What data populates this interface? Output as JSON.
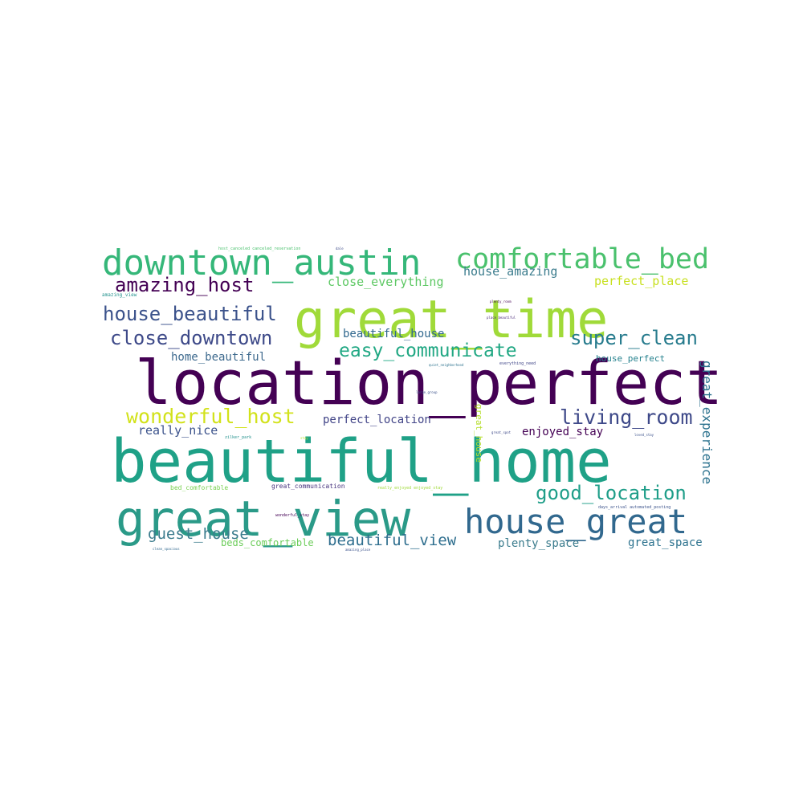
{
  "chart_data": {
    "type": "wordcloud",
    "words": [
      {
        "text": "location_perfect",
        "weight": 1.0,
        "color": "#440154"
      },
      {
        "text": "beautiful_home",
        "weight": 0.96,
        "color": "#1fa187"
      },
      {
        "text": "great_time",
        "weight": 0.78,
        "color": "#a0da39"
      },
      {
        "text": "great_view",
        "weight": 0.74,
        "color": "#2a9a88"
      },
      {
        "text": "downtown_austin",
        "weight": 0.52,
        "color": "#35b779"
      },
      {
        "text": "house_great",
        "weight": 0.52,
        "color": "#31688e"
      },
      {
        "text": "comfortable_bed",
        "weight": 0.44,
        "color": "#4ac16d"
      },
      {
        "text": "living_room",
        "weight": 0.33,
        "color": "#3e4989"
      },
      {
        "text": "wonderful_host",
        "weight": 0.33,
        "color": "#d2e21b"
      },
      {
        "text": "house_beautiful",
        "weight": 0.32,
        "color": "#3b528b"
      },
      {
        "text": "close_downtown",
        "weight": 0.32,
        "color": "#3e4a89"
      },
      {
        "text": "super_clean",
        "weight": 0.32,
        "color": "#287c8e"
      },
      {
        "text": "amazing_host",
        "weight": 0.31,
        "color": "#440154"
      },
      {
        "text": "easy_communicate",
        "weight": 0.31,
        "color": "#22a884"
      },
      {
        "text": "good_location",
        "weight": 0.31,
        "color": "#1f9e89"
      },
      {
        "text": "guest_house",
        "weight": 0.25,
        "color": "#3b7c8d"
      },
      {
        "text": "beautiful_view",
        "weight": 0.25,
        "color": "#2e6e8e"
      },
      {
        "text": "great_experience",
        "weight": 0.21,
        "color": "#2c728e"
      },
      {
        "text": "really_nice",
        "weight": 0.2,
        "color": "#3b528b"
      },
      {
        "text": "perfect_place",
        "weight": 0.2,
        "color": "#c8e020"
      },
      {
        "text": "close_everything",
        "weight": 0.2,
        "color": "#5dc863"
      },
      {
        "text": "house_amazing",
        "weight": 0.2,
        "color": "#3b7c8d"
      },
      {
        "text": "beautiful_house",
        "weight": 0.18,
        "color": "#31688e"
      },
      {
        "text": "home_beautiful",
        "weight": 0.18,
        "color": "#3e6a8e"
      },
      {
        "text": "perfect_location",
        "weight": 0.18,
        "color": "#414487"
      },
      {
        "text": "enjoyed_stay",
        "weight": 0.18,
        "color": "#440154"
      },
      {
        "text": "plenty_space",
        "weight": 0.18,
        "color": "#3b7c8d"
      },
      {
        "text": "great_space",
        "weight": 0.18,
        "color": "#2c728e"
      },
      {
        "text": "beds_comfortable",
        "weight": 0.16,
        "color": "#6ccd5a"
      },
      {
        "text": "house_perfect",
        "weight": 0.14,
        "color": "#26828e"
      },
      {
        "text": "great_house",
        "weight": 0.14,
        "color": "#b5de2b"
      },
      {
        "text": "bed_comfortable",
        "weight": 0.1,
        "color": "#7ad151"
      },
      {
        "text": "great_communication",
        "weight": 0.1,
        "color": "#46337e"
      },
      {
        "text": "amazing_view",
        "weight": 0.07,
        "color": "#21918c"
      },
      {
        "text": "zilker_park",
        "weight": 0.06,
        "color": "#21918c"
      },
      {
        "text": "wonderful_stay",
        "weight": 0.07,
        "color": "#440154"
      },
      {
        "text": "really_enjoyed enjoyed_stay",
        "weight": 0.06,
        "color": "#a0da39"
      },
      {
        "text": "days_arrival automated_posting",
        "weight": 0.06,
        "color": "#3b528b"
      },
      {
        "text": "host_canceled canceled_reservation",
        "weight": 0.06,
        "color": "#4ac16d"
      },
      {
        "text": "everything_need",
        "weight": 0.07,
        "color": "#404688"
      },
      {
        "text": "quiet_neighborhood",
        "weight": 0.06,
        "color": "#2c728e"
      },
      {
        "text": "large_group",
        "weight": 0.05,
        "color": "#3b528b"
      },
      {
        "text": "loved_stay",
        "weight": 0.05,
        "color": "#3b528b"
      },
      {
        "text": "clean_spacious",
        "weight": 0.05,
        "color": "#31688e"
      },
      {
        "text": "amazing_place",
        "weight": 0.05,
        "color": "#3b528b"
      },
      {
        "text": "plenty_room",
        "weight": 0.05,
        "color": "#440154"
      },
      {
        "text": "place_beautiful",
        "weight": 0.05,
        "color": "#482878"
      },
      {
        "text": "great_spot",
        "weight": 0.05,
        "color": "#3e4a89"
      },
      {
        "text": "stay",
        "weight": 0.05,
        "color": "#b5de2b"
      },
      {
        "text": "dale",
        "weight": 0.05,
        "color": "#3e4a89"
      }
    ]
  }
}
